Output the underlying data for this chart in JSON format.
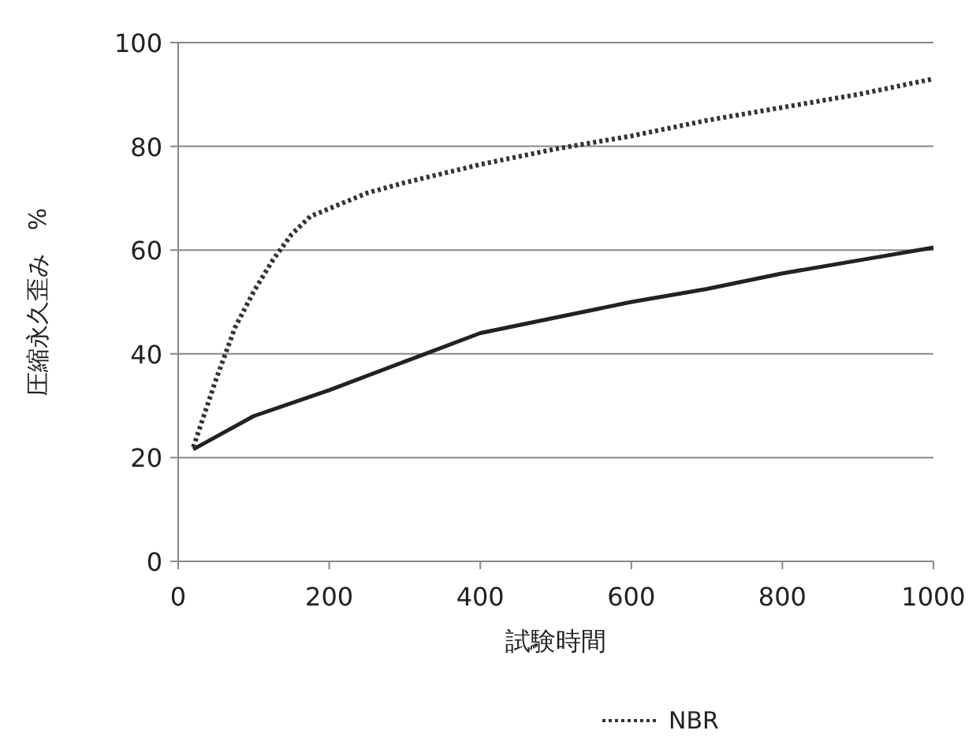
{
  "chart_data": {
    "type": "line",
    "xlabel": "試験時間",
    "ylabel": "圧縮永久歪み　%",
    "xlim": [
      0,
      1000
    ],
    "ylim": [
      0,
      100
    ],
    "xticks": [
      0,
      200,
      400,
      600,
      800,
      1000
    ],
    "yticks": [
      0,
      20,
      40,
      60,
      80,
      100
    ],
    "grid": "y",
    "legend": "bottom",
    "marker": "none",
    "series": [
      {
        "color": "#222222",
        "line_style": "solid",
        "x": [
          20,
          100,
          200,
          300,
          400,
          500,
          600,
          700,
          800,
          900,
          1000
        ],
        "values": [
          21.6,
          28,
          33,
          38.5,
          44,
          47,
          50,
          52.5,
          55.5,
          58,
          60.5
        ]
      },
      {
        "name": "NBR",
        "color": "#333333",
        "line_style": "dotted",
        "x": [
          20,
          50,
          75,
          100,
          125,
          150,
          175,
          200,
          250,
          300,
          400,
          500,
          600,
          700,
          800,
          900,
          1000
        ],
        "values": [
          22,
          35,
          45,
          52,
          58,
          63,
          66.5,
          68,
          71,
          73,
          76.5,
          79.5,
          82,
          85,
          87.5,
          90,
          93
        ]
      }
    ]
  }
}
